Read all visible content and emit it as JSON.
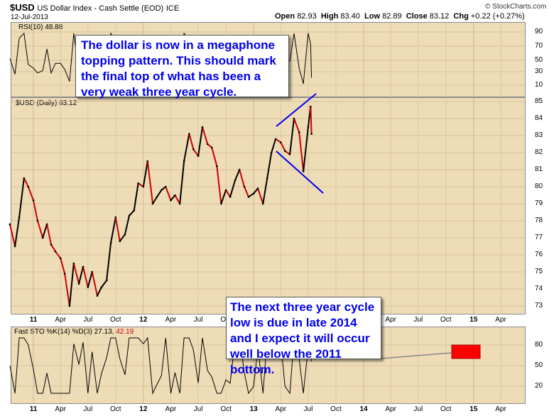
{
  "header": {
    "symbol": "$USD",
    "name": "US Dollar Index - Cash Settle (EOD)",
    "exchange": "ICE",
    "date": "12-Jul-2013",
    "open_label": "Open",
    "open": "82.93",
    "high_label": "High",
    "high": "83.40",
    "low_label": "Low",
    "low": "82.89",
    "close_label": "Close",
    "close": "83.12",
    "chg_label": "Chg",
    "chg": "+0.22 (+0.27%)",
    "brand": "© StockCharts.com"
  },
  "panels": {
    "rsi_label": "RSI(10) 48.88",
    "rsi_levels": [
      "90",
      "70",
      "50",
      "30",
      "10"
    ],
    "price_label": "$USD (Daily) 83.12",
    "price_levels": [
      "85",
      "84",
      "83",
      "82",
      "81",
      "80",
      "79",
      "78",
      "77",
      "76",
      "75",
      "74",
      "73"
    ],
    "sto_label_a": "Fast STO %K(14) %D(3) 27.13,",
    "sto_label_b": "42.19",
    "sto_levels": [
      "80",
      "50",
      "20"
    ]
  },
  "x_labels": [
    "11",
    "Apr",
    "Jul",
    "Oct",
    "12",
    "Apr",
    "Jul",
    "Oct",
    "13",
    "Apr",
    "Jul",
    "Oct",
    "14",
    "Apr",
    "Jul",
    "Oct",
    "15",
    "Apr"
  ],
  "annotations": {
    "top_note": "The dollar is now in a megaphone topping pattern. This should mark the final top of what has been a very weak three year cycle.",
    "bottom_note": "The next three year cycle low is due in late 2014 and I expect it will occur well below the 2011 bottom."
  },
  "colors": {
    "up": "#000000",
    "down": "#cc0000",
    "panel": "#eedcb7",
    "note_text": "#0000ee",
    "trendline": "#0000ee",
    "marker": "#ff0000"
  },
  "chart_data": {
    "type": "line",
    "x_axis": "date",
    "y_range": [
      72.5,
      85.5
    ],
    "series": [
      {
        "values": [
          [
            "2010-10-15",
            77.8
          ],
          [
            "2010-11-01",
            76.5
          ],
          [
            "2010-11-15",
            78.2
          ],
          [
            "2010-12-01",
            80.5
          ],
          [
            "2010-12-15",
            80.0
          ],
          [
            "2011-01-01",
            79.2
          ],
          [
            "2011-01-15",
            78.0
          ],
          [
            "2011-02-01",
            77.0
          ],
          [
            "2011-02-15",
            77.8
          ],
          [
            "2011-03-01",
            76.6
          ],
          [
            "2011-03-15",
            76.2
          ],
          [
            "2011-04-01",
            75.8
          ],
          [
            "2011-04-15",
            74.9
          ],
          [
            "2011-05-01",
            73.0
          ],
          [
            "2011-05-15",
            75.5
          ],
          [
            "2011-06-01",
            74.3
          ],
          [
            "2011-06-15",
            75.3
          ],
          [
            "2011-07-01",
            74.1
          ],
          [
            "2011-07-15",
            75.0
          ],
          [
            "2011-08-01",
            73.6
          ],
          [
            "2011-08-15",
            74.1
          ],
          [
            "2011-09-01",
            74.5
          ],
          [
            "2011-09-15",
            76.7
          ],
          [
            "2011-10-01",
            78.2
          ],
          [
            "2011-10-15",
            76.8
          ],
          [
            "2011-11-01",
            77.2
          ],
          [
            "2011-11-15",
            78.3
          ],
          [
            "2011-12-01",
            78.6
          ],
          [
            "2011-12-15",
            80.2
          ],
          [
            "2012-01-01",
            80.0
          ],
          [
            "2012-01-15",
            81.5
          ],
          [
            "2012-02-01",
            79.0
          ],
          [
            "2012-02-15",
            79.4
          ],
          [
            "2012-03-01",
            79.8
          ],
          [
            "2012-03-15",
            80.0
          ],
          [
            "2012-04-01",
            79.2
          ],
          [
            "2012-04-15",
            79.5
          ],
          [
            "2012-05-01",
            79.0
          ],
          [
            "2012-05-15",
            81.5
          ],
          [
            "2012-06-01",
            83.1
          ],
          [
            "2012-06-15",
            82.2
          ],
          [
            "2012-07-01",
            81.8
          ],
          [
            "2012-07-15",
            83.5
          ],
          [
            "2012-08-01",
            82.5
          ],
          [
            "2012-08-15",
            82.3
          ],
          [
            "2012-09-01",
            81.2
          ],
          [
            "2012-09-15",
            79.0
          ],
          [
            "2012-10-01",
            79.8
          ],
          [
            "2012-10-15",
            79.4
          ],
          [
            "2012-11-01",
            80.4
          ],
          [
            "2012-11-15",
            81.0
          ],
          [
            "2012-12-01",
            80.0
          ],
          [
            "2012-12-15",
            79.4
          ],
          [
            "2013-01-01",
            79.6
          ],
          [
            "2013-01-15",
            79.9
          ],
          [
            "2013-02-01",
            79.0
          ],
          [
            "2013-02-15",
            80.5
          ],
          [
            "2013-03-01",
            82.0
          ],
          [
            "2013-03-15",
            82.8
          ],
          [
            "2013-04-01",
            82.6
          ],
          [
            "2013-04-15",
            82.1
          ],
          [
            "2013-05-01",
            81.9
          ],
          [
            "2013-05-15",
            84.0
          ],
          [
            "2013-06-01",
            83.2
          ],
          [
            "2013-06-15",
            80.9
          ],
          [
            "2013-07-01",
            83.5
          ],
          [
            "2013-07-09",
            84.7
          ],
          [
            "2013-07-12",
            83.1
          ]
        ]
      }
    ]
  }
}
